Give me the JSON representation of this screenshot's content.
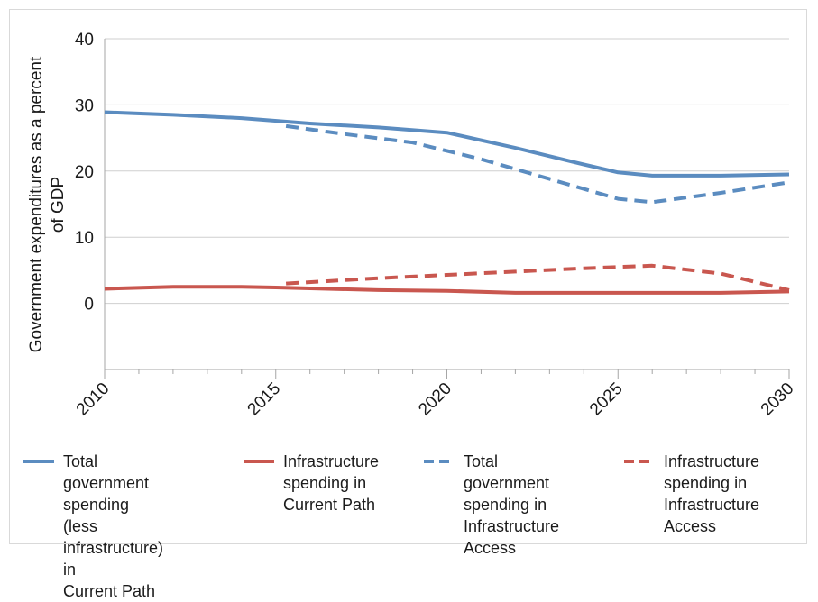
{
  "chart_data": {
    "type": "line",
    "title": "",
    "xlabel": "",
    "ylabel": "Government expenditures as a percent of GDP",
    "ylabel_lines": [
      "Government expenditures as a percent",
      "of GDP"
    ],
    "xlim": [
      2010,
      2030
    ],
    "ylim": [
      -10,
      40
    ],
    "yticks": [
      0,
      10,
      20,
      30,
      40
    ],
    "xticks": [
      2010,
      2015,
      2020,
      2025,
      2030
    ],
    "xtick_labels": [
      "2010",
      "2015",
      "2020",
      "2025",
      "2030"
    ],
    "ytick_labels": [
      "0",
      "10",
      "20",
      "30",
      "40"
    ],
    "grid": "horizontal",
    "legend_position": "bottom",
    "series": [
      {
        "name": "Total government spending (less infrastructure) in Current Path",
        "legend_lines": "Total government\nspending (less\ninfrastructure) in\nCurrent Path",
        "color": "#5b8cc0",
        "style": "solid",
        "x": [
          2010,
          2012,
          2014,
          2016,
          2018,
          2020,
          2022,
          2024,
          2025,
          2026,
          2028,
          2030
        ],
        "y": [
          28.9,
          28.5,
          28.0,
          27.2,
          26.6,
          25.8,
          23.5,
          21.0,
          19.8,
          19.3,
          19.3,
          19.5
        ]
      },
      {
        "name": "Infrastructure spending in Current Path",
        "legend_lines": "Infrastructure\nspending in\nCurrent Path",
        "color": "#c9574f",
        "style": "solid",
        "x": [
          2010,
          2012,
          2014,
          2015,
          2018,
          2020,
          2022,
          2025,
          2028,
          2030
        ],
        "y": [
          2.2,
          2.5,
          2.5,
          2.4,
          2.0,
          1.9,
          1.6,
          1.6,
          1.6,
          1.8
        ]
      },
      {
        "name": "Total government spending in Infrastructure Access",
        "legend_lines": "Total government\nspending in\nInfrastructure\nAccess",
        "color": "#5b8cc0",
        "style": "dashed",
        "x": [
          2015.3,
          2017,
          2019,
          2021,
          2023,
          2025,
          2026,
          2028,
          2030
        ],
        "y": [
          26.8,
          25.6,
          24.3,
          21.8,
          18.8,
          15.8,
          15.3,
          16.7,
          18.3
        ]
      },
      {
        "name": "Infrastructure spending in Infrastructure Access",
        "legend_lines": "Infrastructure\nspending in\nInfrastructure\nAccess",
        "color": "#c9574f",
        "style": "dashed",
        "x": [
          2015.3,
          2018,
          2020,
          2022,
          2024,
          2026,
          2028,
          2030
        ],
        "y": [
          3.0,
          3.8,
          4.3,
          4.8,
          5.3,
          5.7,
          4.5,
          2.0
        ]
      }
    ]
  }
}
